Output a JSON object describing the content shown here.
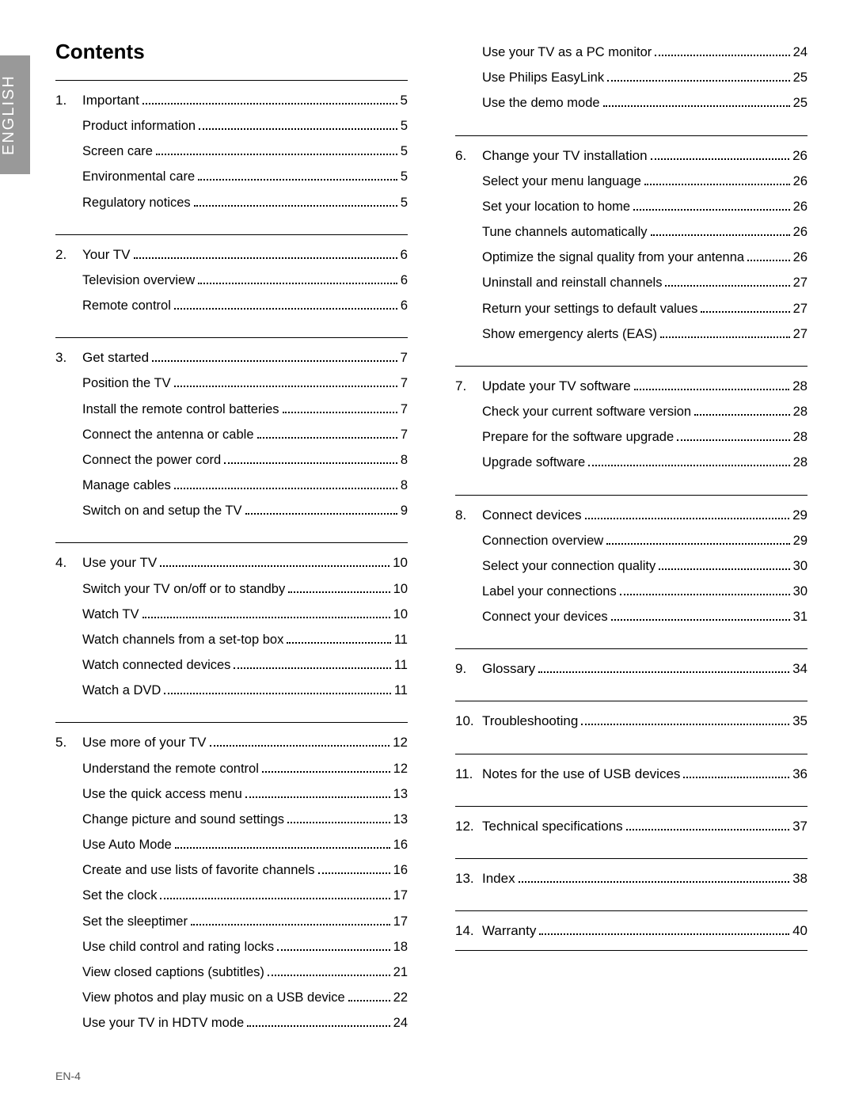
{
  "language_tab": "ENGLISH",
  "title": "Contents",
  "footer": "EN-4",
  "left_sections": [
    {
      "num": "1.",
      "title": "Important",
      "page": "5",
      "items": [
        {
          "label": "Product information",
          "page": "5"
        },
        {
          "label": "Screen care",
          "page": "5"
        },
        {
          "label": "Environmental care",
          "page": "5"
        },
        {
          "label": "Regulatory notices",
          "page": "5"
        }
      ]
    },
    {
      "num": "2.",
      "title": "Your TV",
      "page": "6",
      "items": [
        {
          "label": "Television overview",
          "page": "6"
        },
        {
          "label": "Remote control",
          "page": "6"
        }
      ]
    },
    {
      "num": "3.",
      "title": "Get started",
      "page": "7",
      "items": [
        {
          "label": "Position the TV",
          "page": "7"
        },
        {
          "label": "Install the remote control batteries",
          "page": "7"
        },
        {
          "label": "Connect the antenna or cable",
          "page": "7"
        },
        {
          "label": "Connect the power cord",
          "page": "8"
        },
        {
          "label": "Manage cables",
          "page": "8"
        },
        {
          "label": "Switch on and setup the TV",
          "page": "9"
        }
      ]
    },
    {
      "num": "4.",
      "title": "Use your TV",
      "page": "10",
      "items": [
        {
          "label": "Switch your TV on/off or to standby",
          "page": "10"
        },
        {
          "label": "Watch TV",
          "page": "10"
        },
        {
          "label": "Watch channels from a set-top box",
          "page": "11"
        },
        {
          "label": "Watch connected devices",
          "page": "11"
        },
        {
          "label": "Watch a DVD",
          "page": "11"
        }
      ]
    },
    {
      "num": "5.",
      "title": "Use more of your TV",
      "page": "12",
      "items": [
        {
          "label": "Understand the remote control",
          "page": "12"
        },
        {
          "label": "Use the quick access menu",
          "page": "13"
        },
        {
          "label": "Change picture and sound settings",
          "page": "13"
        },
        {
          "label": "Use Auto Mode",
          "page": "16"
        },
        {
          "label": "Create and use lists of favorite channels",
          "page": "16"
        },
        {
          "label": "Set the clock",
          "page": "17"
        },
        {
          "label": "Set the sleeptimer",
          "page": "17"
        },
        {
          "label": "Use child control and rating locks",
          "page": "18"
        },
        {
          "label": "View closed captions (subtitles)",
          "page": "21"
        },
        {
          "label": "View photos and play music on a USB device",
          "page": "22"
        },
        {
          "label": "Use your TV in HDTV mode",
          "page": "24"
        }
      ]
    }
  ],
  "right_orphan_items": [
    {
      "label": "Use your TV as a PC monitor",
      "page": "24"
    },
    {
      "label": "Use Philips EasyLink",
      "page": "25"
    },
    {
      "label": "Use the demo mode",
      "page": "25"
    }
  ],
  "right_sections": [
    {
      "num": "6.",
      "title": "Change your TV installation",
      "page": "26",
      "items": [
        {
          "label": "Select your menu language",
          "page": "26"
        },
        {
          "label": "Set your location to home",
          "page": "26"
        },
        {
          "label": "Tune channels automatically",
          "page": "26"
        },
        {
          "label": "Optimize the signal quality from your antenna",
          "page": "26"
        },
        {
          "label": "Uninstall and reinstall channels",
          "page": "27"
        },
        {
          "label": "Return your settings to default values",
          "page": "27"
        },
        {
          "label": "Show emergency alerts (EAS)",
          "page": "27"
        }
      ]
    },
    {
      "num": "7.",
      "title": "Update your TV software",
      "page": "28",
      "items": [
        {
          "label": "Check your current software version",
          "page": "28"
        },
        {
          "label": "Prepare for the software upgrade",
          "page": "28"
        },
        {
          "label": "Upgrade software",
          "page": "28"
        }
      ]
    },
    {
      "num": "8.",
      "title": "Connect devices",
      "page": "29",
      "items": [
        {
          "label": "Connection overview",
          "page": "29"
        },
        {
          "label": "Select your connection quality",
          "page": "30"
        },
        {
          "label": "Label your connections",
          "page": "30"
        },
        {
          "label": "Connect your devices",
          "page": "31"
        }
      ]
    },
    {
      "num": "9.",
      "title": "Glossary",
      "page": "34",
      "items": []
    },
    {
      "num": "10.",
      "title": "Troubleshooting",
      "page": "35",
      "items": []
    },
    {
      "num": "11.",
      "title": "Notes for the use of USB devices",
      "page": "36",
      "items": []
    },
    {
      "num": "12.",
      "title": "Technical specifications",
      "page": "37",
      "items": []
    },
    {
      "num": "13.",
      "title": "Index",
      "page": "38",
      "items": []
    },
    {
      "num": "14.",
      "title": "Warranty",
      "page": "40",
      "items": [],
      "trailing_rule": true
    }
  ]
}
